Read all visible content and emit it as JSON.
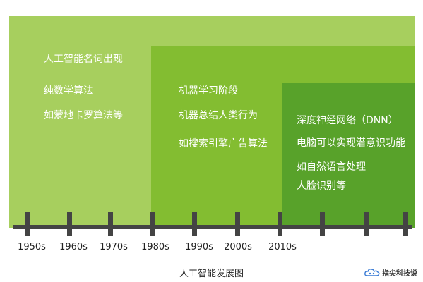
{
  "eras": [
    {
      "lines": [
        "人工智能名词出现",
        "纯数学算法",
        "如蒙地卡罗算法等"
      ]
    },
    {
      "lines": [
        "机器学习阶段",
        "机器总结人类行为",
        "如搜索引擎广告算法"
      ]
    },
    {
      "lines": [
        "深度神经网络（DNN）",
        "电脑可以实现潜意识功能",
        "如自然语言处理",
        "人脸识别等"
      ]
    }
  ],
  "timeline": {
    "decades": [
      "1950s",
      "1960s",
      "1970s",
      "1980s",
      "1990s",
      "2000s",
      "2010s"
    ]
  },
  "caption": "人工智能发展图",
  "watermark": {
    "text": "指尖科技说",
    "icon": "cloud-logo-icon"
  },
  "colors": {
    "era1": "#a7cf5e",
    "era2": "#83bd31",
    "era3": "#58a22a",
    "axis": "#444444"
  }
}
